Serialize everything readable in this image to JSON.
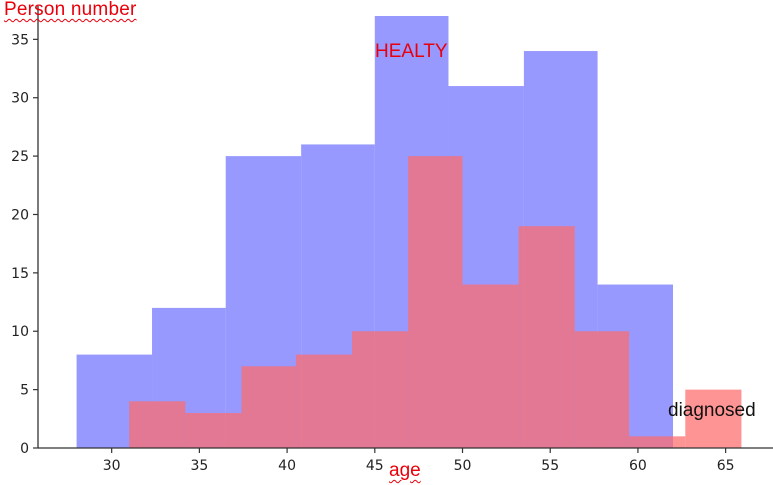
{
  "chart_data": {
    "type": "bar",
    "xlabel": "age",
    "ylabel": "Person number",
    "xlim": [
      25.8,
      67.7
    ],
    "ylim": [
      0,
      37
    ],
    "xticks": [
      30,
      35,
      40,
      45,
      50,
      55,
      60,
      65
    ],
    "yticks": [
      0,
      5,
      10,
      15,
      20,
      25,
      30,
      35
    ],
    "grid": false,
    "series": [
      {
        "name": "HEALTY",
        "color": "#7b7cff",
        "bins": [
          {
            "x0": 28.0,
            "x1": 32.3,
            "count": 8
          },
          {
            "x0": 32.3,
            "x1": 36.5,
            "count": 12
          },
          {
            "x0": 36.5,
            "x1": 40.8,
            "count": 25
          },
          {
            "x0": 40.8,
            "x1": 45.0,
            "count": 26
          },
          {
            "x0": 45.0,
            "x1": 49.2,
            "count": 37
          },
          {
            "x0": 49.2,
            "x1": 53.5,
            "count": 31
          },
          {
            "x0": 53.5,
            "x1": 57.7,
            "count": 34
          },
          {
            "x0": 57.7,
            "x1": 62.0,
            "count": 14
          }
        ]
      },
      {
        "name": "diagnosed",
        "color": "#ff6b6b",
        "bins": [
          {
            "x0": 31.0,
            "x1": 34.2,
            "count": 4
          },
          {
            "x0": 34.2,
            "x1": 37.4,
            "count": 3
          },
          {
            "x0": 37.4,
            "x1": 40.5,
            "count": 7
          },
          {
            "x0": 40.5,
            "x1": 43.7,
            "count": 8
          },
          {
            "x0": 43.7,
            "x1": 46.9,
            "count": 10
          },
          {
            "x0": 46.9,
            "x1": 50.0,
            "count": 25
          },
          {
            "x0": 50.0,
            "x1": 53.2,
            "count": 14
          },
          {
            "x0": 53.2,
            "x1": 56.4,
            "count": 19
          },
          {
            "x0": 56.4,
            "x1": 59.5,
            "count": 10
          },
          {
            "x0": 59.5,
            "x1": 62.7,
            "count": 1
          },
          {
            "x0": 62.7,
            "x1": 65.9,
            "count": 5
          }
        ]
      }
    ]
  }
}
